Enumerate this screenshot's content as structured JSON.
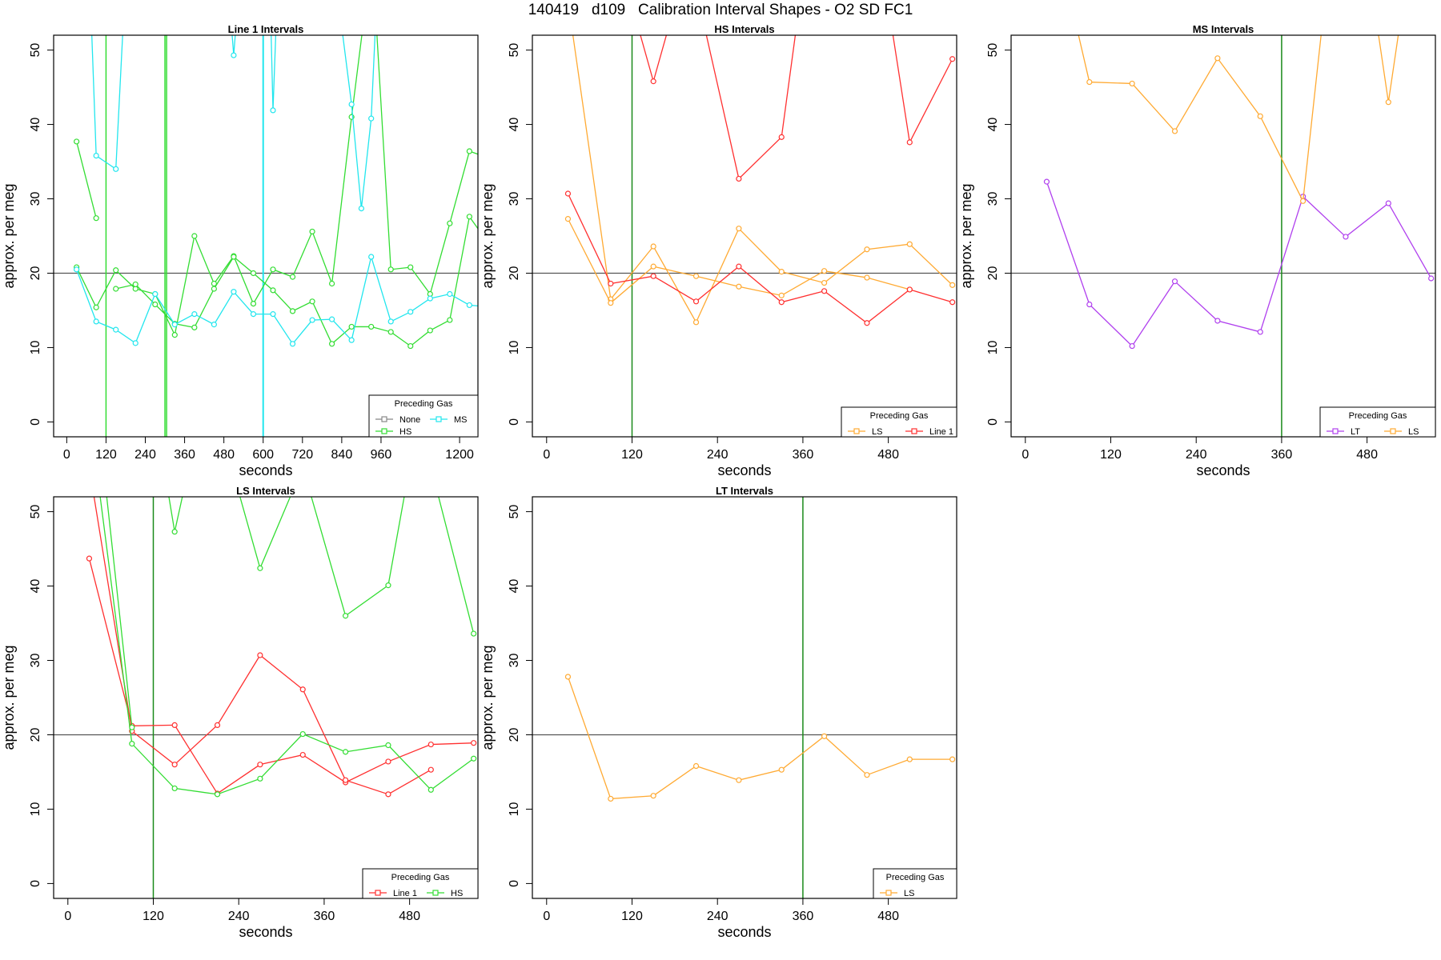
{
  "figure": {
    "title": "140419   d109   Calibration Interval Shapes - O2 SD FC1"
  },
  "colors": {
    "Line 1": "#ff3030",
    "None": "#888888",
    "HS": "#33dd33",
    "MS": "#22e6ee",
    "LS": "#ffaa33",
    "LT": "#b040ee",
    "ref_line": "#555555",
    "green_vline": "#1a8a1a"
  },
  "chart_data": [
    {
      "type": "line",
      "title": "Line 1 Intervals",
      "xlabel": "seconds",
      "ylabel": "approx. per meg",
      "xlim": [
        -40,
        1256
      ],
      "ylim": [
        -2,
        52
      ],
      "xticks": [
        0,
        120,
        240,
        360,
        480,
        600,
        720,
        840,
        960,
        1200
      ],
      "yticks": [
        0,
        10,
        20,
        30,
        40,
        50
      ],
      "hline": 20,
      "vlines": [
        {
          "x": 120,
          "color": "HS"
        },
        {
          "x": 300,
          "color": "HS"
        },
        {
          "x": 305,
          "color": "HS"
        },
        {
          "x": 600,
          "color": "MS"
        }
      ],
      "legend": {
        "title": "Preceding Gas",
        "position": "bottom-right",
        "entries": [
          "None",
          "MS",
          "HS"
        ]
      },
      "series": [
        {
          "name": "HS",
          "x": [
            30,
            90
          ],
          "y": [
            37.7,
            27.4
          ]
        },
        {
          "name": "HS",
          "x": [
            30,
            90,
            150,
            210,
            270,
            330,
            390,
            450,
            510,
            570,
            630,
            690,
            750,
            810,
            870,
            930
          ],
          "y": [
            20.8,
            15.4,
            20.4,
            17.9,
            17.2,
            11.7,
            25.0,
            18.6,
            22.3,
            15.9,
            20.5,
            19.5,
            25.6,
            18.6,
            41.0,
            62
          ]
        },
        {
          "name": "HS",
          "x": [
            150,
            210,
            270,
            330,
            390,
            450,
            510,
            570,
            630,
            690,
            750,
            810,
            870,
            930,
            990,
            1050,
            1110,
            1170,
            1230,
            1256
          ],
          "y": [
            17.9,
            18.5,
            15.8,
            13.2,
            12.7,
            17.9,
            22.2,
            20.0,
            17.7,
            14.9,
            16.2,
            10.5,
            12.8,
            12.8,
            12.1,
            10.2,
            12.3,
            13.7,
            27.6,
            26
          ]
        },
        {
          "name": "HS",
          "x": [
            930,
            990,
            1050,
            1110,
            1170,
            1230,
            1256
          ],
          "y": [
            65,
            20.5,
            20.8,
            17.2,
            26.7,
            36.4,
            36
          ]
        },
        {
          "name": "MS",
          "x": [
            30,
            90,
            150,
            210,
            270,
            330,
            390,
            450,
            510,
            570,
            630,
            690,
            750,
            810,
            870,
            930,
            990,
            1050,
            1110,
            1170,
            1230,
            1256
          ],
          "y": [
            20.5,
            13.5,
            12.4,
            10.6,
            17.2,
            13.1,
            14.5,
            13.1,
            17.5,
            14.5,
            14.5,
            10.5,
            13.7,
            13.8,
            11.0,
            22.2,
            13.5,
            14.8,
            16.6,
            17.2,
            15.7,
            15.6
          ]
        },
        {
          "name": "MS",
          "x": [
            70,
            90,
            150,
            180
          ],
          "y": [
            60,
            35.8,
            34.0,
            60
          ]
        },
        {
          "name": "MS",
          "x": [
            500,
            510,
            520
          ],
          "y": [
            55,
            49.3,
            55
          ]
        },
        {
          "name": "MS",
          "x": [
            620,
            630,
            645
          ],
          "y": [
            60,
            41.9,
            60
          ]
        },
        {
          "name": "MS",
          "x": [
            820,
            870,
            900,
            930,
            950
          ],
          "y": [
            60,
            42.7,
            28.7,
            40.8,
            60
          ]
        }
      ]
    },
    {
      "type": "line",
      "title": "HS Intervals",
      "xlabel": "seconds",
      "ylabel": "approx. per meg",
      "xlim": [
        -20,
        576
      ],
      "ylim": [
        -2,
        52
      ],
      "xticks": [
        0,
        120,
        240,
        360,
        480
      ],
      "yticks": [
        0,
        10,
        20,
        30,
        40,
        50
      ],
      "hline": 20,
      "vlines": [
        {
          "x": 120,
          "color": "green_vline"
        }
      ],
      "legend": {
        "title": "Preceding Gas",
        "position": "bottom-right",
        "entries": [
          "LS",
          "Line 1"
        ]
      },
      "series": [
        {
          "name": "LS",
          "x": [
            25,
            90,
            150,
            210,
            270,
            330,
            390,
            450,
            510,
            570
          ],
          "y": [
            60,
            16.5,
            23.6,
            13.4,
            26.0,
            20.2,
            18.7,
            23.2,
            23.9,
            18.4
          ]
        },
        {
          "name": "LS",
          "x": [
            30,
            90,
            150,
            210,
            270,
            330,
            390,
            450,
            510
          ],
          "y": [
            27.3,
            16.0,
            20.9,
            19.6,
            18.2,
            17.0,
            20.3,
            19.4,
            17.8
          ]
        },
        {
          "name": "Line 1",
          "x": [
            30,
            90,
            150,
            210,
            270,
            330,
            390,
            450,
            510,
            570
          ],
          "y": [
            30.7,
            18.6,
            19.6,
            16.2,
            20.9,
            16.1,
            17.6,
            13.3,
            17.8,
            16.1
          ]
        },
        {
          "name": "Line 1",
          "x": [
            120,
            150,
            180
          ],
          "y": [
            56,
            45.8,
            56
          ]
        },
        {
          "name": "Line 1",
          "x": [
            215,
            270,
            330,
            355
          ],
          "y": [
            56,
            32.7,
            38.3,
            56
          ]
        },
        {
          "name": "Line 1",
          "x": [
            480,
            510,
            570
          ],
          "y": [
            56,
            37.6,
            48.8
          ]
        }
      ]
    },
    {
      "type": "line",
      "title": "MS Intervals",
      "xlabel": "seconds",
      "ylabel": "approx. per meg",
      "xlim": [
        -20,
        576
      ],
      "ylim": [
        -2,
        52
      ],
      "xticks": [
        0,
        120,
        240,
        360,
        480
      ],
      "yticks": [
        0,
        10,
        20,
        30,
        40,
        50
      ],
      "hline": 20,
      "vlines": [
        {
          "x": 360,
          "color": "green_vline"
        }
      ],
      "legend": {
        "title": "Preceding Gas",
        "position": "bottom-right",
        "entries": [
          "LT",
          "LS"
        ]
      },
      "series": [
        {
          "name": "LT",
          "x": [
            30,
            90,
            150,
            210,
            270,
            330,
            390,
            450,
            510,
            570
          ],
          "y": [
            32.3,
            15.8,
            10.2,
            18.9,
            13.6,
            12.1,
            30.3,
            24.9,
            29.4,
            19.3
          ]
        },
        {
          "name": "LS",
          "x": [
            65,
            90,
            150,
            210,
            270,
            330,
            390,
            420
          ],
          "y": [
            56,
            45.7,
            45.5,
            39.1,
            48.9,
            41.1,
            29.7,
            56
          ]
        },
        {
          "name": "LS",
          "x": [
            490,
            510,
            530
          ],
          "y": [
            56,
            43.0,
            56
          ]
        }
      ]
    },
    {
      "type": "line",
      "title": "LS Intervals",
      "xlabel": "seconds",
      "ylabel": "approx. per meg",
      "xlim": [
        -20,
        576
      ],
      "ylim": [
        -2,
        52
      ],
      "xticks": [
        0,
        120,
        240,
        360,
        480
      ],
      "yticks": [
        0,
        10,
        20,
        30,
        40,
        50
      ],
      "hline": 20,
      "vlines": [
        {
          "x": 120,
          "color": "green_vline"
        }
      ],
      "legend": {
        "title": "Preceding Gas",
        "position": "bottom-right",
        "entries": [
          "Line 1",
          "HS"
        ]
      },
      "series": [
        {
          "name": "Line 1",
          "x": [
            30,
            90,
            150,
            210,
            270,
            330,
            390,
            450,
            510,
            570
          ],
          "y": [
            43.7,
            21.2,
            21.3,
            12.1,
            16.0,
            17.3,
            13.6,
            16.4,
            18.7,
            18.9
          ]
        },
        {
          "name": "Line 1",
          "x": [
            30,
            90,
            150,
            210,
            270,
            330,
            390,
            450,
            510
          ],
          "y": [
            56,
            20.5,
            16.0,
            21.3,
            30.7,
            26.1,
            13.9,
            12.0,
            15.3
          ]
        },
        {
          "name": "HS",
          "x": [
            40,
            90,
            150,
            210,
            270,
            330,
            390,
            450,
            510,
            570
          ],
          "y": [
            56,
            18.8,
            12.8,
            12.0,
            14.1,
            20.1,
            17.7,
            18.6,
            12.6,
            16.8
          ]
        },
        {
          "name": "HS",
          "x": [
            50,
            90
          ],
          "y": [
            56,
            21.0
          ]
        },
        {
          "name": "HS",
          "x": [
            135,
            150,
            170
          ],
          "y": [
            56,
            47.3,
            56
          ]
        },
        {
          "name": "HS",
          "x": [
            230,
            270,
            330,
            390,
            450,
            480,
            510,
            570
          ],
          "y": [
            56,
            42.4,
            56,
            36.0,
            40.1,
            56,
            56,
            33.6
          ]
        }
      ]
    },
    {
      "type": "line",
      "title": "LT Intervals",
      "xlabel": "seconds",
      "ylabel": "approx. per meg",
      "xlim": [
        -20,
        576
      ],
      "ylim": [
        -2,
        52
      ],
      "xticks": [
        0,
        120,
        240,
        360,
        480
      ],
      "yticks": [
        0,
        10,
        20,
        30,
        40,
        50
      ],
      "hline": 20,
      "vlines": [
        {
          "x": 360,
          "color": "green_vline"
        }
      ],
      "legend": {
        "title": "Preceding Gas",
        "position": "bottom-right",
        "entries": [
          "LS"
        ]
      },
      "series": [
        {
          "name": "LS",
          "x": [
            30,
            90,
            150,
            210,
            270,
            330,
            390,
            450,
            510,
            570
          ],
          "y": [
            27.8,
            11.4,
            11.8,
            15.8,
            13.9,
            15.3,
            19.8,
            14.6,
            16.7,
            16.7
          ]
        }
      ]
    }
  ]
}
